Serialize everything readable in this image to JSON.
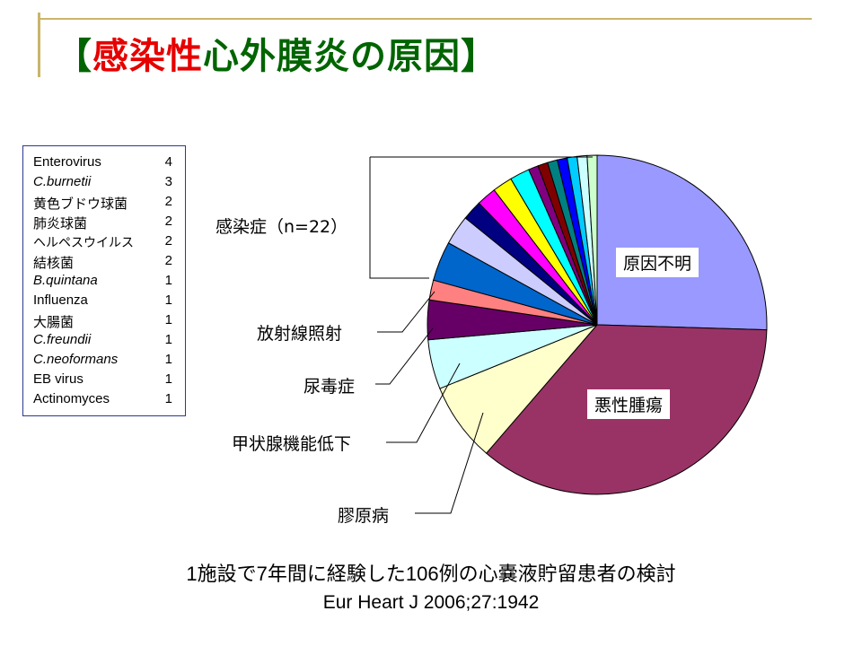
{
  "title": {
    "part1": "【",
    "part2": "感染性",
    "part3": "心外膜炎の原因】"
  },
  "legend": [
    {
      "name": "Enterovirus",
      "count": "4",
      "italic": false
    },
    {
      "name": "C.burnetii",
      "count": "3",
      "italic": true
    },
    {
      "name": "黄色ブドウ球菌",
      "count": "2",
      "italic": false
    },
    {
      "name": "肺炎球菌",
      "count": "2",
      "italic": false
    },
    {
      "name": "ヘルペスウイルス",
      "count": "2",
      "italic": false
    },
    {
      "name": "結核菌",
      "count": "2",
      "italic": false
    },
    {
      "name": "B.quintana",
      "count": "1",
      "italic": true
    },
    {
      "name": "Influenza",
      "count": "1",
      "italic": false
    },
    {
      "name": "大腸菌",
      "count": "1",
      "italic": false
    },
    {
      "name": "C.freundii",
      "count": "1",
      "italic": true
    },
    {
      "name": "C.neoformans",
      "count": "1",
      "italic": true
    },
    {
      "name": "EB virus",
      "count": "1",
      "italic": false
    },
    {
      "name": "Actinomyces",
      "count": "1",
      "italic": false
    }
  ],
  "labels": {
    "infection": "感染症（n=22）",
    "unknown": "原因不明",
    "malignancy": "悪性腫瘍",
    "radiation": "放射線照射",
    "uremia": "尿毒症",
    "hypothyroid": "甲状腺機能低下",
    "collagen": "膠原病"
  },
  "footer": {
    "line1": "1施設で7年間に経験した106例の心嚢液貯留患者の検討",
    "line2": "Eur Heart J 2006;27:1942"
  },
  "chart_data": {
    "type": "pie",
    "total": 106,
    "start": "12 o'clock, clockwise",
    "slices": [
      {
        "label": "原因不明",
        "value": 27,
        "color": "#9999ff"
      },
      {
        "label": "悪性腫瘍",
        "value": 38,
        "color": "#993366"
      },
      {
        "label": "膠原病",
        "value": 8,
        "color": "#ffffcc"
      },
      {
        "label": "甲状腺機能低下",
        "value": 5,
        "color": "#ccffff"
      },
      {
        "label": "尿毒症",
        "value": 4,
        "color": "#660066"
      },
      {
        "label": "放射線照射",
        "value": 2,
        "color": "#ff8080"
      },
      {
        "label": "Enterovirus",
        "value": 4,
        "color": "#0066cc"
      },
      {
        "label": "C.burnetii",
        "value": 3,
        "color": "#ccccff"
      },
      {
        "label": "黄色ブドウ球菌",
        "value": 2,
        "color": "#000080"
      },
      {
        "label": "肺炎球菌",
        "value": 2,
        "color": "#ff00ff"
      },
      {
        "label": "ヘルペスウイルス",
        "value": 2,
        "color": "#ffff00"
      },
      {
        "label": "結核菌",
        "value": 2,
        "color": "#00ffff"
      },
      {
        "label": "B.quintana",
        "value": 1,
        "color": "#800080"
      },
      {
        "label": "Influenza",
        "value": 1,
        "color": "#800000"
      },
      {
        "label": "大腸菌",
        "value": 1,
        "color": "#008080"
      },
      {
        "label": "C.freundii",
        "value": 1,
        "color": "#0000ff"
      },
      {
        "label": "C.neoformans",
        "value": 1,
        "color": "#00ccff"
      },
      {
        "label": "EB virus",
        "value": 1,
        "color": "#ccffff"
      },
      {
        "label": "Actinomyces",
        "value": 1,
        "color": "#ccffcc"
      }
    ]
  }
}
